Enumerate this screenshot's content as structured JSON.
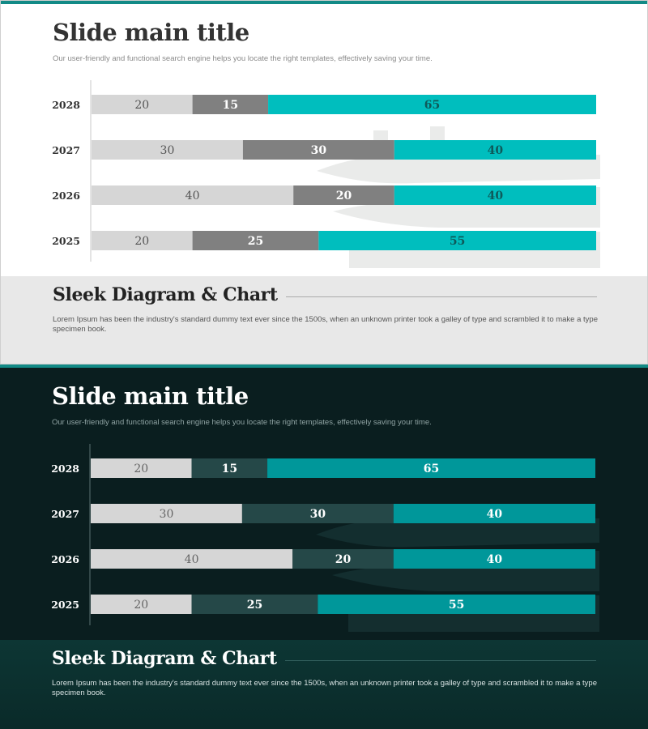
{
  "slides": [
    {
      "theme": "light",
      "title": "Slide main title",
      "subtitle": "Our user-friendly and functional search engine helps you locate the right templates, effectively saving your time.",
      "section_title": "Sleek Diagram & Chart",
      "section_text": "Lorem Ipsum has been the industry's standard dummy text ever since the 1500s, when an unknown printer took a galley of type and scrambled it to make a type specimen book.",
      "colors": {
        "seg1": "#d6d6d6",
        "seg2": "#808080",
        "seg3": "#00bebe",
        "text1": "#555555",
        "text2": "#ffffff",
        "text3": "#0e5a5a",
        "category": "#333333",
        "axis": "#c8c8c8"
      }
    },
    {
      "theme": "dark",
      "title": "Slide main title",
      "subtitle": "Our user-friendly and functional search engine helps you locate the right templates, effectively saving your time.",
      "section_title": "Sleek Diagram & Chart",
      "section_text": "Lorem Ipsum has been the industry's standard dummy text ever since the 1500s, when an unknown printer took a galley of type and scrambled it to make a type specimen book.",
      "colors": {
        "seg1": "#d6d6d6",
        "seg2": "#254848",
        "seg3": "#00979a",
        "text1": "#666666",
        "text2": "#ffffff",
        "text3": "#ffffff",
        "category": "#ffffff",
        "axis": "#5a7070"
      }
    }
  ],
  "chart_data": [
    {
      "type": "bar",
      "orientation": "horizontal",
      "stacked": true,
      "categories": [
        "2028",
        "2027",
        "2026",
        "2025"
      ],
      "series": [
        {
          "values": [
            20,
            30,
            40,
            20
          ]
        },
        {
          "values": [
            15,
            30,
            20,
            25
          ]
        },
        {
          "values": [
            65,
            40,
            40,
            55
          ]
        }
      ],
      "xlim": [
        0,
        100
      ],
      "grid": false,
      "legend": "none"
    },
    {
      "type": "bar",
      "orientation": "horizontal",
      "stacked": true,
      "categories": [
        "2028",
        "2027",
        "2026",
        "2025"
      ],
      "series": [
        {
          "values": [
            20,
            30,
            40,
            20
          ]
        },
        {
          "values": [
            15,
            30,
            20,
            25
          ]
        },
        {
          "values": [
            65,
            40,
            40,
            55
          ]
        }
      ],
      "xlim": [
        0,
        100
      ],
      "grid": false,
      "legend": "none"
    }
  ]
}
